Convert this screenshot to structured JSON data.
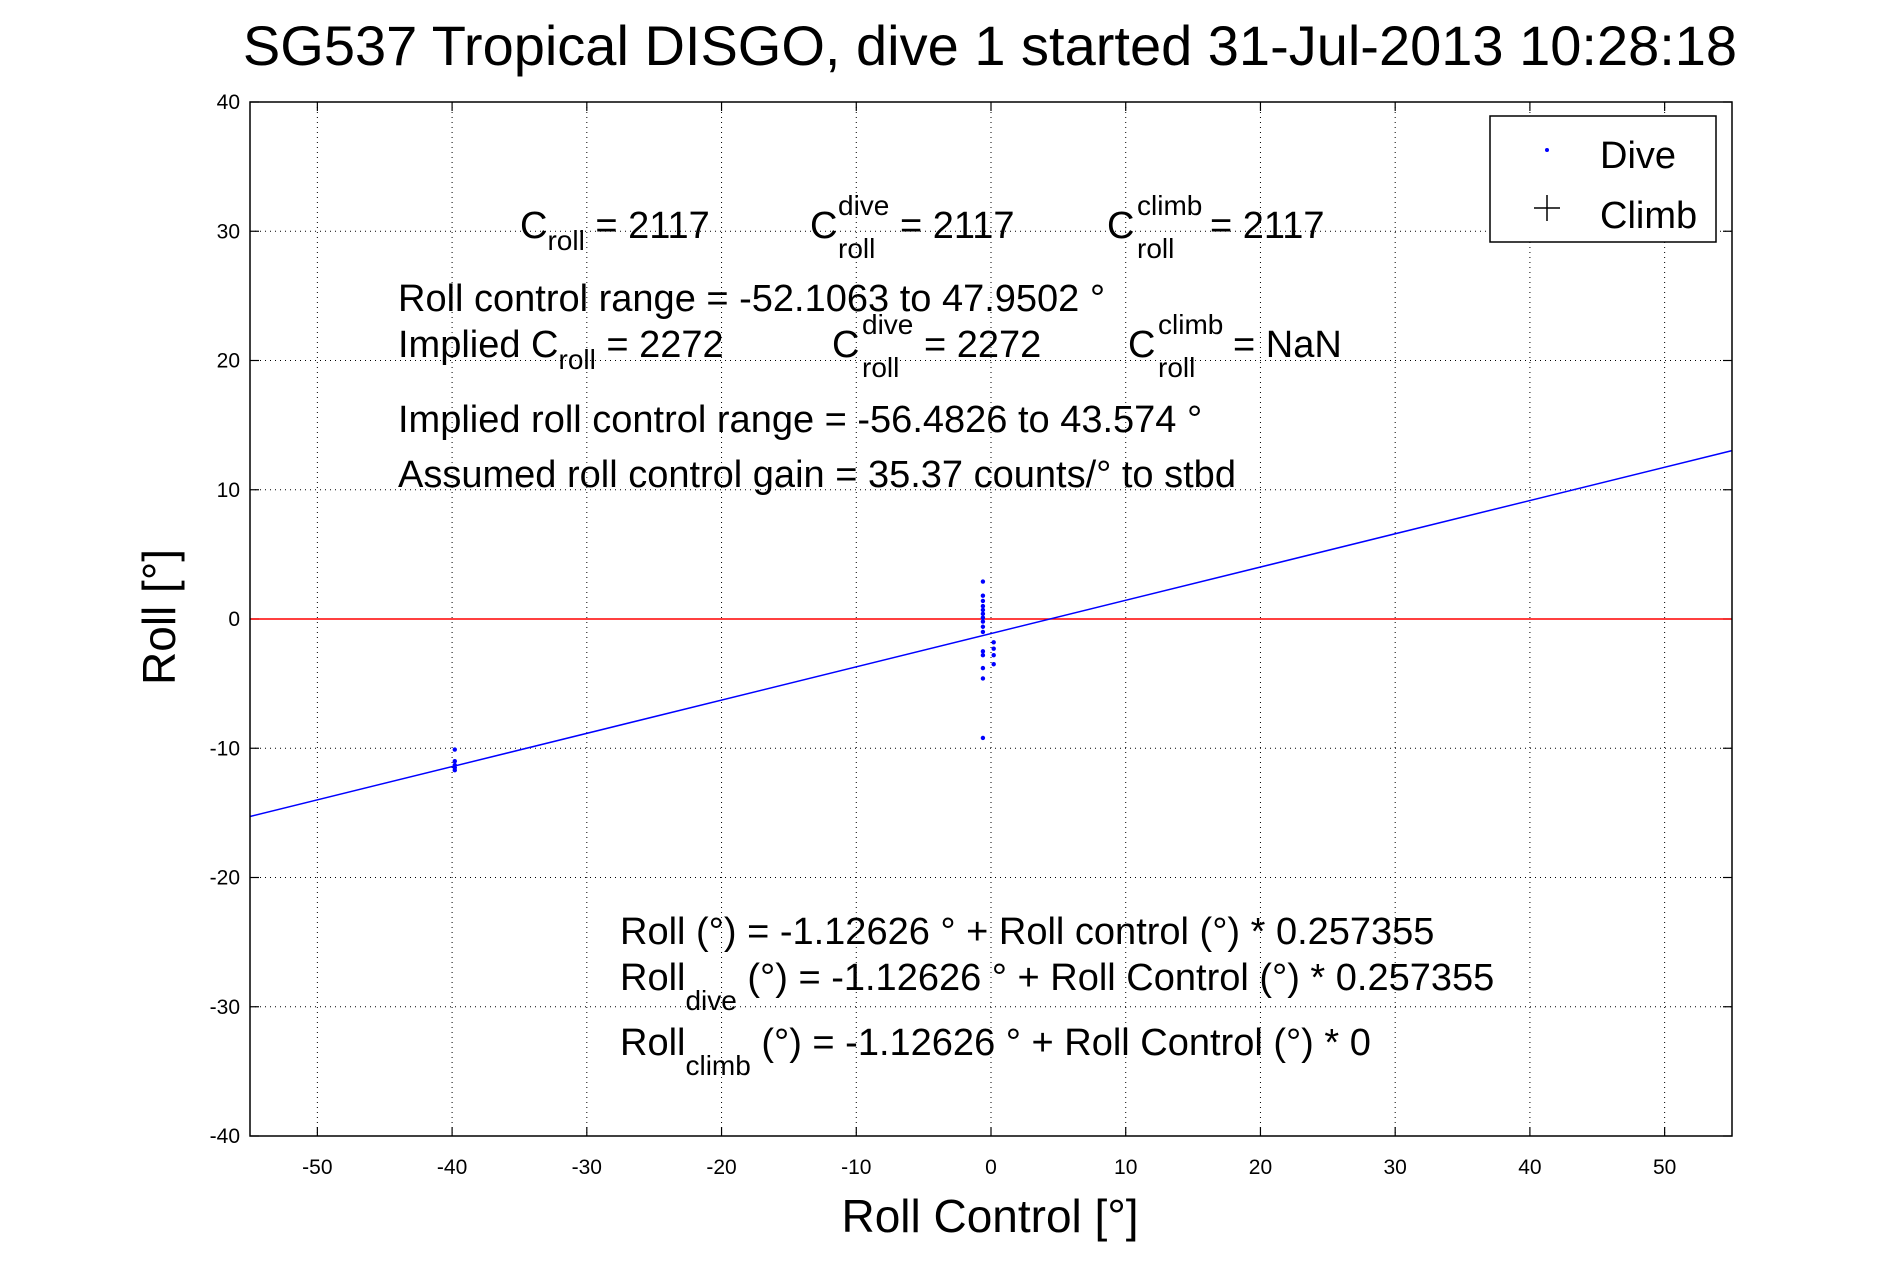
{
  "chart_data": {
    "type": "scatter",
    "title": "SG537 Tropical DISGO, dive 1 started 31-Jul-2013 10:28:18",
    "xlabel": "Roll Control [°]",
    "ylabel": "Roll [°]",
    "xlim": [
      -55,
      55
    ],
    "ylim": [
      -40,
      40
    ],
    "xticks": [
      -50,
      -40,
      -30,
      -20,
      -10,
      0,
      10,
      20,
      30,
      40,
      50
    ],
    "yticks": [
      -40,
      -30,
      -20,
      -10,
      0,
      10,
      20,
      30,
      40
    ],
    "grid": true,
    "legend_position": "top-right",
    "legend": [
      {
        "label": "Dive",
        "marker": "dot",
        "color": "#0000ff"
      },
      {
        "label": "Climb",
        "marker": "plus",
        "color": "#000000"
      }
    ],
    "series": [
      {
        "name": "Dive",
        "type": "scatter",
        "color": "#0000ff",
        "points": [
          [
            -39.8,
            -10.1
          ],
          [
            -39.8,
            -11.0
          ],
          [
            -39.8,
            -11.3
          ],
          [
            -39.8,
            -11.5
          ],
          [
            -39.8,
            -11.7
          ],
          [
            -0.6,
            2.9
          ],
          [
            -0.6,
            1.8
          ],
          [
            -0.6,
            1.4
          ],
          [
            -0.6,
            1.0
          ],
          [
            -0.6,
            0.7
          ],
          [
            -0.6,
            0.4
          ],
          [
            -0.6,
            0.1
          ],
          [
            -0.6,
            -0.2
          ],
          [
            -0.6,
            -0.6
          ],
          [
            -0.6,
            -1.0
          ],
          [
            -0.6,
            -2.5
          ],
          [
            -0.6,
            -2.8
          ],
          [
            -0.6,
            -3.8
          ],
          [
            -0.6,
            -4.6
          ],
          [
            -0.6,
            -9.2
          ],
          [
            0.2,
            -1.8
          ],
          [
            0.2,
            -2.3
          ],
          [
            0.2,
            -2.8
          ],
          [
            0.2,
            -3.5
          ]
        ]
      },
      {
        "name": "Climb",
        "type": "scatter",
        "color": "#000000",
        "points": []
      }
    ],
    "lines": [
      {
        "color": "#ff0000",
        "x": [
          -55,
          55
        ],
        "y": [
          0,
          0
        ]
      },
      {
        "color": "#0000ff",
        "intercept": -1.12626,
        "slope": 0.257355
      }
    ],
    "annotations": {
      "line1": [
        {
          "base": "C",
          "sub": "roll",
          "sup": "",
          "rest": " = 2117"
        },
        {
          "base": "C",
          "sub": "roll",
          "sup": "dive",
          "rest": " = 2117"
        },
        {
          "base": "C",
          "sub": "roll",
          "sup": "climb",
          "rest": " = 2117"
        }
      ],
      "range": "Roll control range = -52.1063 to 47.9502 °",
      "implied_label": "Implied C",
      "implied_sub": "roll",
      "implied_rest": " = 2272",
      "implied_dive": {
        "base": "C",
        "sub": "roll",
        "sup": "dive",
        "rest": " = 2272"
      },
      "implied_climb": {
        "base": "C",
        "sub": "roll",
        "sup": "climb",
        "rest": " =  NaN"
      },
      "implied_range": "Implied roll control range = -56.4826 to 43.574 °",
      "gain": "Assumed roll control gain = 35.37 counts/° to stbd",
      "fit1": "Roll (°) = -1.12626 ° + Roll control (°) * 0.257355",
      "fit2_base": "Roll",
      "fit2_sub": "dive",
      "fit2_rest": " (°) = -1.12626 ° + Roll Control (°) * 0.257355",
      "fit3_base": "Roll",
      "fit3_sub": "climb",
      "fit3_rest": " (°) = -1.12626 ° + Roll Control (°) * 0"
    }
  }
}
